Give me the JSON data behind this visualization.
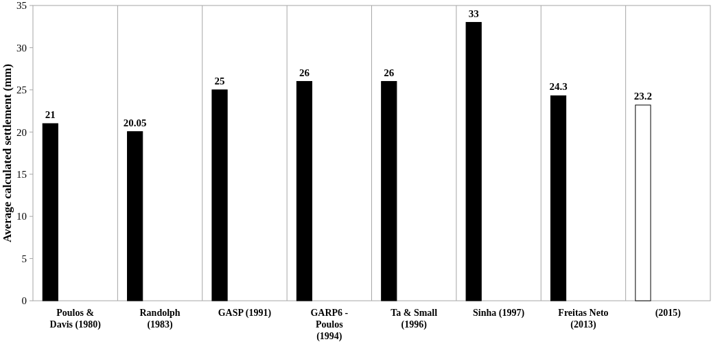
{
  "chart_data": {
    "type": "bar",
    "ylabel": "Average calculated settlement (mm)",
    "categories": [
      "Poulos & Davis (1980)",
      "Randolph (1983)",
      "GASP (1991)",
      "GARP6 - Poulos (1994)",
      "Ta & Small (1996)",
      "Sinha (1997)",
      "Freitas Neto (2013)",
      "(2015)"
    ],
    "values": [
      21,
      20.05,
      25,
      26,
      26,
      33,
      24.3,
      23.2
    ],
    "colors": [
      "#000000",
      "#000000",
      "#000000",
      "#000000",
      "#000000",
      "#000000",
      "#000000",
      "#ffffff"
    ],
    "ylim": [
      0,
      35
    ],
    "yticks": [
      0,
      5,
      10,
      15,
      20,
      25,
      30,
      35
    ],
    "grid": "x",
    "data_labels": true
  }
}
